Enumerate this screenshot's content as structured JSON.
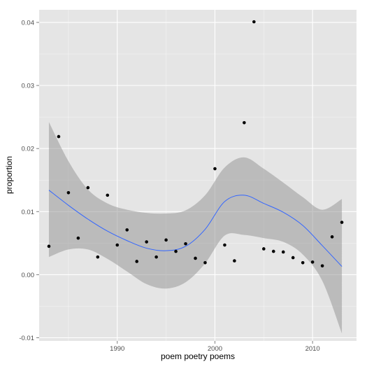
{
  "chart_data": {
    "type": "scatter",
    "title": "",
    "xlabel": "poem poetry poems",
    "ylabel": "proportion",
    "xlim": [
      1982,
      2014.5
    ],
    "ylim": [
      -0.0105,
      0.042
    ],
    "x_ticks": [
      1990,
      2000,
      2010
    ],
    "x_tick_labels": [
      "1990",
      "2000",
      "2010"
    ],
    "y_ticks": [
      -0.01,
      0.0,
      0.01,
      0.02,
      0.03,
      0.04
    ],
    "y_tick_labels": [
      "-0.01",
      "0.00",
      "0.01",
      "0.02",
      "0.03",
      "0.04"
    ],
    "grid": true,
    "legend": "none",
    "colors": {
      "panel": "#e5e5e5",
      "grid": "#ffffff",
      "points": "#000000",
      "smooth_line": "#3366ff",
      "confidence_band": "#999999"
    },
    "points": [
      {
        "x": 1983,
        "y": 0.0045
      },
      {
        "x": 1984,
        "y": 0.0219
      },
      {
        "x": 1985,
        "y": 0.013
      },
      {
        "x": 1986,
        "y": 0.0058
      },
      {
        "x": 1987,
        "y": 0.0138
      },
      {
        "x": 1988,
        "y": 0.0028
      },
      {
        "x": 1989,
        "y": 0.0126
      },
      {
        "x": 1990,
        "y": 0.0047
      },
      {
        "x": 1991,
        "y": 0.0071
      },
      {
        "x": 1992,
        "y": 0.0021
      },
      {
        "x": 1993,
        "y": 0.0052
      },
      {
        "x": 1994,
        "y": 0.0028
      },
      {
        "x": 1995,
        "y": 0.0055
      },
      {
        "x": 1996,
        "y": 0.0037
      },
      {
        "x": 1997,
        "y": 0.0049
      },
      {
        "x": 1998,
        "y": 0.0026
      },
      {
        "x": 1999,
        "y": 0.0019
      },
      {
        "x": 2000,
        "y": 0.0168
      },
      {
        "x": 2001,
        "y": 0.0047
      },
      {
        "x": 2002,
        "y": 0.0022
      },
      {
        "x": 2003,
        "y": 0.0241
      },
      {
        "x": 2004,
        "y": 0.0401
      },
      {
        "x": 2005,
        "y": 0.0041
      },
      {
        "x": 2006,
        "y": 0.0037
      },
      {
        "x": 2007,
        "y": 0.0036
      },
      {
        "x": 2008,
        "y": 0.0027
      },
      {
        "x": 2009,
        "y": 0.0019
      },
      {
        "x": 2010,
        "y": 0.002
      },
      {
        "x": 2011,
        "y": 0.0014
      },
      {
        "x": 2012,
        "y": 0.006
      },
      {
        "x": 2013,
        "y": 0.0083
      }
    ],
    "smooth": {
      "x": [
        1983,
        1985,
        1987,
        1989,
        1991,
        1993,
        1995,
        1997,
        1999,
        2001,
        2003,
        2005,
        2007,
        2009,
        2011,
        2013
      ],
      "y": [
        0.0134,
        0.011,
        0.0088,
        0.0069,
        0.0054,
        0.0042,
        0.0038,
        0.0045,
        0.0072,
        0.0116,
        0.0126,
        0.0113,
        0.0099,
        0.0078,
        0.0046,
        0.0013
      ],
      "lower": [
        0.0028,
        0.004,
        0.004,
        0.0025,
        0.0005,
        -0.0015,
        -0.0022,
        -0.0012,
        0.0018,
        0.0062,
        0.0063,
        0.0058,
        0.0052,
        0.0032,
        -0.001,
        -0.0093
      ],
      "upper": [
        0.0242,
        0.018,
        0.0135,
        0.0113,
        0.0103,
        0.0098,
        0.0097,
        0.0102,
        0.0126,
        0.017,
        0.0186,
        0.0168,
        0.0146,
        0.0123,
        0.0103,
        0.012
      ]
    }
  }
}
